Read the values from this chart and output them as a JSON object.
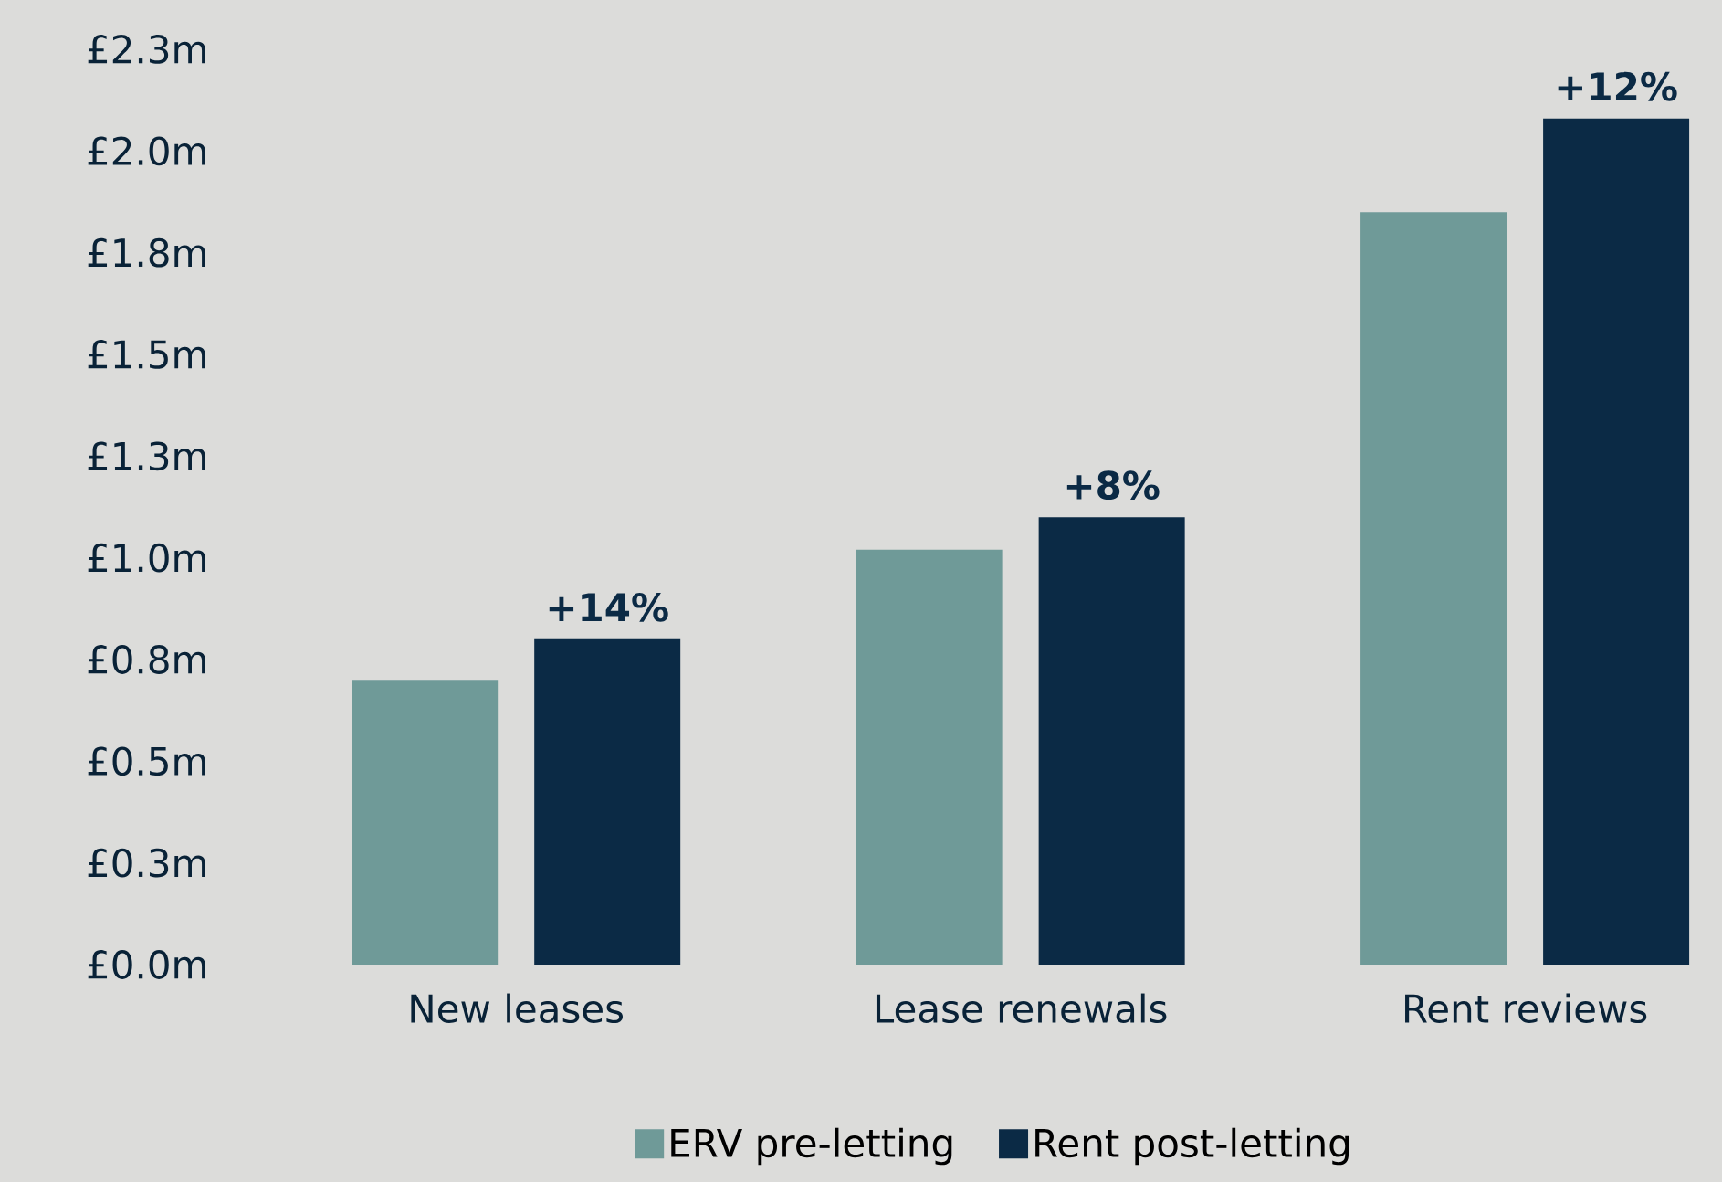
{
  "chart_data": {
    "type": "bar",
    "categories": [
      "New leases",
      "Lease renewals",
      "Rent reviews"
    ],
    "series": [
      {
        "name": "ERV pre-letting",
        "color": "#6f9a98",
        "values": [
          0.7,
          1.02,
          1.85
        ]
      },
      {
        "name": "Rent post-letting",
        "color": "#0b2a45",
        "values": [
          0.8,
          1.1,
          2.08
        ]
      }
    ],
    "ylim": [
      0,
      2.25
    ],
    "yticks": [
      {
        "value": 0,
        "label": "£0.0m"
      },
      {
        "value": 0.25,
        "label": "£0.3m"
      },
      {
        "value": 0.5,
        "label": "£0.5m"
      },
      {
        "value": 0.75,
        "label": "£0.8m"
      },
      {
        "value": 1.0,
        "label": "£1.0m"
      },
      {
        "value": 1.25,
        "label": "£1.3m"
      },
      {
        "value": 1.5,
        "label": "£1.5m"
      },
      {
        "value": 1.75,
        "label": "£1.8m"
      },
      {
        "value": 2.0,
        "label": "£2.0m"
      },
      {
        "value": 2.25,
        "label": "£2.3m"
      }
    ],
    "annotations": [
      "+14%",
      "+8%",
      "+12%"
    ],
    "grid": false,
    "legend": "bottom"
  }
}
